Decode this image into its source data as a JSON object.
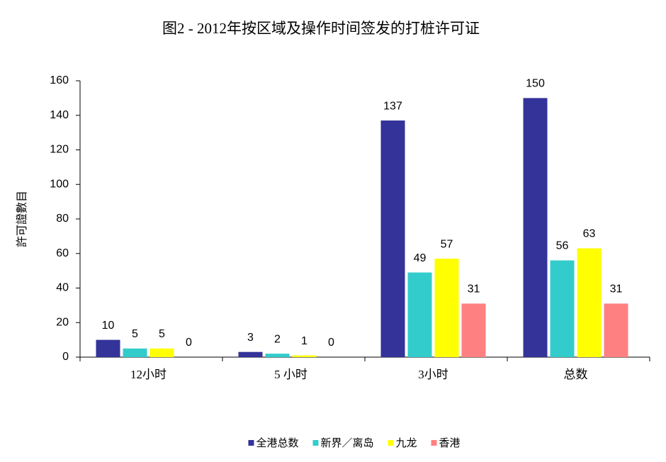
{
  "chart_data": {
    "type": "bar",
    "title": "图2 - 2012年按区域及操作时间签发的打桩许可证",
    "y_label": "許可證數目",
    "categories": [
      "12小时",
      "5 小时",
      "3小时",
      "总数"
    ],
    "series": [
      {
        "name": "全港总数",
        "color": "#333399",
        "values": [
          10,
          3,
          137,
          150
        ]
      },
      {
        "name": "新界／离岛",
        "color": "#33CCCC",
        "values": [
          5,
          2,
          49,
          56
        ]
      },
      {
        "name": "九龙",
        "color": "#FFFF00",
        "values": [
          5,
          1,
          57,
          63
        ]
      },
      {
        "name": "香港",
        "color": "#FF8080",
        "values": [
          0,
          0,
          31,
          31
        ]
      }
    ],
    "ylim": [
      0,
      160
    ],
    "yticks": [
      0,
      20,
      40,
      60,
      80,
      100,
      120,
      140,
      160
    ],
    "legend": "bottom"
  }
}
